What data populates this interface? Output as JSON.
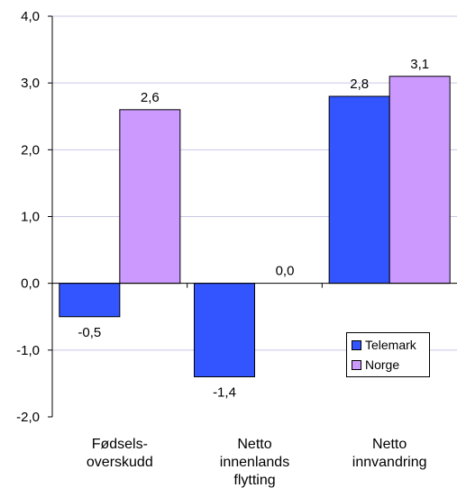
{
  "chart_data": {
    "type": "bar",
    "categories": [
      [
        "Fødsels-",
        "overskudd"
      ],
      [
        "Netto",
        "innenlands",
        "flytting"
      ],
      [
        "Netto",
        "innvandring"
      ]
    ],
    "series": [
      {
        "name": "Telemark",
        "values": [
          -0.5,
          -1.4,
          2.8
        ],
        "labels": [
          "-0,5",
          "-1,4",
          "2,8"
        ],
        "color": "#3355ff"
      },
      {
        "name": "Norge",
        "values": [
          2.6,
          0.0,
          3.1
        ],
        "labels": [
          "2,6",
          "0,0",
          "3,1"
        ],
        "color": "#cc99ff"
      }
    ],
    "ylim": [
      -2,
      4
    ],
    "yticks": [
      -2,
      -1,
      0,
      1,
      2,
      3,
      4
    ],
    "ytick_labels": [
      "-2,0",
      "-1,0",
      "0,0",
      "1,0",
      "2,0",
      "3,0",
      "4,0"
    ],
    "grid": true,
    "legend_position": "bottom-right",
    "title": "",
    "xlabel": "",
    "ylabel": ""
  }
}
